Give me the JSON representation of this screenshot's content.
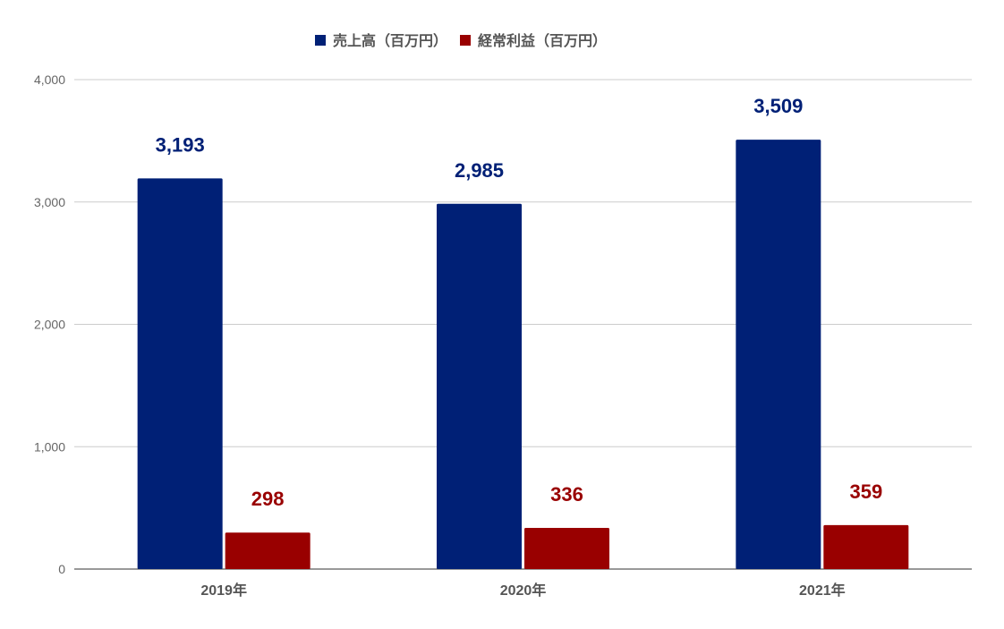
{
  "chart_data": {
    "type": "bar",
    "categories": [
      "2019年",
      "2020年",
      "2021年"
    ],
    "series": [
      {
        "name": "売上高（百万円）",
        "color": "#002076",
        "values": [
          3193,
          2985,
          3509
        ],
        "labels": [
          "3,193",
          "2,985",
          "3,509"
        ]
      },
      {
        "name": "経常利益（百万円）",
        "color": "#990000",
        "values": [
          298,
          336,
          359
        ],
        "labels": [
          "298",
          "336",
          "359"
        ]
      }
    ],
    "ylim": [
      0,
      4000
    ],
    "yticks": [
      0,
      1000,
      2000,
      3000,
      4000
    ],
    "ytick_labels": [
      "0",
      "1,000",
      "2,000",
      "3,000",
      "4,000"
    ],
    "grid": true,
    "legend_position": "top"
  }
}
